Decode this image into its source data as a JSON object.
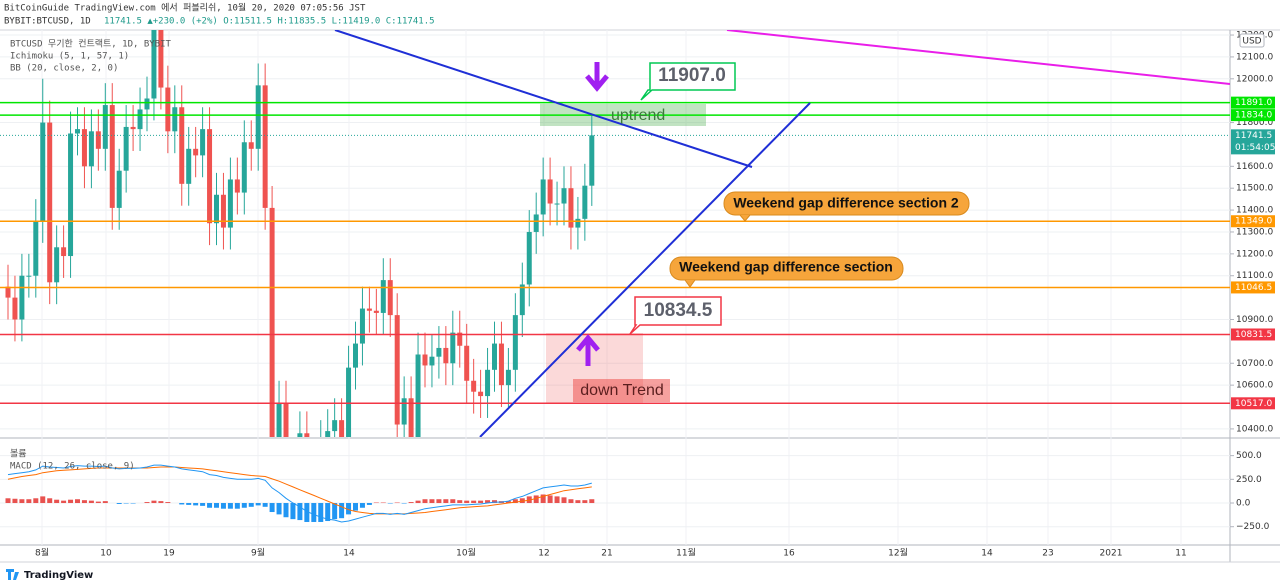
{
  "header": {
    "publisher": "BitCoinGuide TradingView.com 에서 퍼블리쉬, 10월 20, 2020 07:05:56 JST",
    "symbol": "BYBIT:BTCUSD, 1D",
    "quote": "11741.5 ▲+230.0 (+2%) O:11511.5 H:11835.5 L:11419.0 C:11741.5"
  },
  "chart_data": [
    {
      "type": "candlestick",
      "legend": [
        "BTCUSD 무기한 컨트랙트, 1D, BYBIT",
        "Ichimoku (5, 1, 57, 1)",
        "BB (20, close, 2, 0)"
      ],
      "x_labels": [
        "8월",
        "10",
        "19",
        "9월",
        "14",
        "10월",
        "12",
        "21",
        "11월",
        "16",
        "12월",
        "14",
        "23",
        "2021",
        "11"
      ],
      "up_color": "#26a69a",
      "down_color": "#ef5350",
      "open": [
        11050,
        11000,
        10900,
        11100,
        11100,
        11350,
        11800,
        11070,
        11230,
        11190,
        11750,
        11770,
        11600,
        11760,
        11680,
        11880,
        11410,
        11580,
        11780,
        11770,
        11860,
        11910,
        12300,
        11960,
        11760,
        11870,
        11520,
        11680,
        11650,
        11770,
        11340,
        11470,
        11320,
        11540,
        11480,
        11710,
        11680,
        11970,
        11410,
        10240,
        10520,
        10170,
        10260,
        10380,
        10130,
        10230,
        10340,
        10390,
        10440,
        10330,
        10680,
        10790,
        10950,
        10940,
        10930,
        11080,
        10920,
        10420,
        10540,
        10240,
        10740,
        10690,
        10730,
        10770,
        10700,
        10840,
        10780,
        10620,
        10570,
        10550,
        10670,
        10790,
        10600,
        10670,
        10920,
        11060,
        11300,
        11380,
        11540,
        11430,
        11430,
        11500,
        11320,
        11360,
        11511.5
      ],
      "high": [
        11150,
        11100,
        11200,
        11200,
        11450,
        12000,
        11900,
        11330,
        11330,
        11850,
        11870,
        11870,
        11860,
        11860,
        11980,
        11980,
        11680,
        11880,
        11880,
        11960,
        12010,
        12400,
        12400,
        12060,
        11970,
        11970,
        11780,
        11780,
        11870,
        11870,
        11570,
        11570,
        11640,
        11640,
        11810,
        11810,
        12070,
        12070,
        11510,
        10620,
        10620,
        10360,
        10480,
        10480,
        10330,
        10440,
        10490,
        10540,
        10540,
        10780,
        10890,
        11050,
        11050,
        11040,
        11180,
        11180,
        11020,
        10640,
        10640,
        10840,
        10840,
        10830,
        10870,
        10870,
        10940,
        10940,
        10880,
        10720,
        10670,
        10770,
        10890,
        10890,
        10770,
        11020,
        11160,
        11400,
        11480,
        11640,
        11640,
        11530,
        11600,
        11600,
        11460,
        11611.5,
        11835.5
      ],
      "low": [
        10900,
        10800,
        10800,
        11000,
        11000,
        11250,
        10970,
        10970,
        11090,
        11090,
        11650,
        11500,
        11500,
        11580,
        11580,
        11310,
        11310,
        11480,
        11670,
        11670,
        11760,
        11810,
        11860,
        11660,
        11660,
        11420,
        11420,
        11550,
        11550,
        11240,
        11240,
        11220,
        11220,
        11380,
        11380,
        11580,
        11580,
        11310,
        10140,
        10140,
        10070,
        10070,
        10160,
        10030,
        10030,
        10130,
        10240,
        10290,
        10230,
        10230,
        10580,
        10690,
        10840,
        10830,
        10830,
        10820,
        10320,
        10320,
        10140,
        10140,
        10590,
        10590,
        10630,
        10600,
        10600,
        10680,
        10520,
        10470,
        10450,
        10450,
        10570,
        10500,
        10500,
        10570,
        10820,
        10960,
        11200,
        11280,
        11330,
        11330,
        11330,
        11220,
        11220,
        11260,
        11419.0
      ],
      "close": [
        11000,
        10900,
        11100,
        11100,
        11350,
        11800,
        11070,
        11230,
        11190,
        11750,
        11770,
        11600,
        11760,
        11680,
        11880,
        11410,
        11580,
        11780,
        11770,
        11860,
        11910,
        12300,
        11960,
        11760,
        11870,
        11520,
        11680,
        11650,
        11770,
        11340,
        11470,
        11320,
        11540,
        11480,
        11710,
        11680,
        11970,
        11410,
        10240,
        10520,
        10170,
        10260,
        10380,
        10130,
        10230,
        10340,
        10390,
        10440,
        10330,
        10680,
        10790,
        10950,
        10940,
        10930,
        11080,
        10920,
        10420,
        10540,
        10240,
        10740,
        10690,
        10730,
        10770,
        10700,
        10840,
        10780,
        10620,
        10570,
        10550,
        10670,
        10790,
        10600,
        10670,
        10920,
        11060,
        11300,
        11380,
        11540,
        11430,
        11430,
        11500,
        11320,
        11360,
        11511.5,
        11741.5
      ],
      "ylim": [
        10363,
        12223
      ],
      "yticks": [
        {
          "value": 12200,
          "label": "12200.0"
        },
        {
          "value": 12100,
          "label": "12100.0"
        },
        {
          "value": 12000,
          "label": "12000.0"
        },
        {
          "value": 11800,
          "label": "11800.0"
        },
        {
          "value": 11600,
          "label": "11600.0"
        },
        {
          "value": 11500,
          "label": "11500.0"
        },
        {
          "value": 11400,
          "label": "11400.0"
        },
        {
          "value": 11300,
          "label": "11300.0"
        },
        {
          "value": 11200,
          "label": "11200.0"
        },
        {
          "value": 11100,
          "label": "11100.0"
        },
        {
          "value": 10900,
          "label": "10900.0"
        },
        {
          "value": 10700,
          "label": "10700.0"
        },
        {
          "value": 10600,
          "label": "10600.0"
        },
        {
          "value": 10400,
          "label": "10400.0"
        }
      ],
      "grid": true,
      "currency": "USD",
      "price_lines": [
        {
          "value": 11891,
          "label": "11891.0",
          "color": "#00e600"
        },
        {
          "value": 11834,
          "label": "11834.0",
          "color": "#00e600"
        },
        {
          "value": 11349,
          "label": "11349.0",
          "color": "#ff9800"
        },
        {
          "value": 11046.5,
          "label": "11046.5",
          "color": "#ff9800"
        },
        {
          "value": 10831.5,
          "label": "10831.5",
          "color": "#f23645"
        },
        {
          "value": 10517,
          "label": "10517.0",
          "color": "#f23645"
        }
      ],
      "last_price": {
        "value": 11741.5,
        "countdown": "01:54:05",
        "color": "#26a69a"
      },
      "annotations": {
        "top_price": "11907.0",
        "uptrend": "uptrend",
        "gap2": "Weekend gap difference section 2",
        "gap1": "Weekend gap difference section",
        "bottom_price": "10834.5",
        "downtrend": "down Trend"
      }
    },
    {
      "type": "macd",
      "legend": [
        "볼륨",
        "MACD (12, 26, close, 9)"
      ],
      "ylim": [
        -443,
        665
      ],
      "yticks": [
        {
          "value": 500,
          "label": "500.0"
        },
        {
          "value": 250,
          "label": "250.0"
        },
        {
          "value": 0,
          "label": "0.0"
        },
        {
          "value": -250,
          "label": "−250.0"
        }
      ],
      "histogram": {
        "up_color": "#e8524f",
        "down_color": "#2196f3",
        "values": [
          50,
          45,
          40,
          40,
          50,
          70,
          50,
          35,
          25,
          35,
          40,
          30,
          25,
          15,
          20,
          0,
          -10,
          -5,
          -5,
          0,
          10,
          25,
          20,
          10,
          0,
          -15,
          -20,
          -25,
          -30,
          -50,
          -50,
          -60,
          -60,
          -60,
          -50,
          -40,
          -25,
          -40,
          -95,
          -120,
          -150,
          -170,
          -180,
          -200,
          -200,
          -200,
          -190,
          -170,
          -160,
          -120,
          -80,
          -50,
          -20,
          5,
          5,
          -5,
          5,
          -5,
          10,
          25,
          40,
          40,
          40,
          40,
          40,
          30,
          25,
          25,
          25,
          30,
          30,
          20,
          20,
          40,
          50,
          70,
          80,
          90,
          80,
          70,
          60,
          40,
          30,
          30,
          40
        ]
      },
      "macd": {
        "color": "#2196f3",
        "values": [
          300,
          310,
          320,
          330,
          350,
          390,
          380,
          375,
          370,
          385,
          395,
          390,
          390,
          385,
          390,
          370,
          360,
          365,
          365,
          370,
          380,
          400,
          400,
          390,
          380,
          360,
          350,
          340,
          330,
          300,
          290,
          270,
          260,
          250,
          250,
          250,
          260,
          240,
          160,
          110,
          50,
          0,
          -40,
          -90,
          -120,
          -150,
          -170,
          -180,
          -200,
          -190,
          -170,
          -150,
          -130,
          -110,
          -110,
          -120,
          -110,
          -120,
          -100,
          -80,
          -60,
          -50,
          -40,
          -30,
          -20,
          -20,
          -20,
          -15,
          -10,
          0,
          10,
          10,
          20,
          50,
          70,
          100,
          130,
          160,
          170,
          180,
          190,
          180,
          180,
          190,
          210
        ]
      },
      "signal": {
        "color": "#ff6d00",
        "values": [
          250,
          265,
          280,
          290,
          300,
          320,
          330,
          340,
          345,
          350,
          355,
          360,
          365,
          370,
          370,
          370,
          370,
          370,
          370,
          370,
          370,
          375,
          380,
          380,
          380,
          375,
          370,
          365,
          360,
          350,
          340,
          330,
          320,
          310,
          300,
          290,
          285,
          280,
          255,
          230,
          200,
          170,
          140,
          110,
          80,
          50,
          20,
          -10,
          -40,
          -70,
          -90,
          -100,
          -110,
          -115,
          -115,
          -115,
          -115,
          -115,
          -110,
          -105,
          -100,
          -90,
          -80,
          -70,
          -60,
          -50,
          -45,
          -40,
          -35,
          -30,
          -20,
          -10,
          0,
          10,
          20,
          30,
          50,
          70,
          90,
          110,
          130,
          140,
          150,
          160,
          170
        ]
      }
    }
  ],
  "footer": {
    "logo": "TradingView"
  }
}
